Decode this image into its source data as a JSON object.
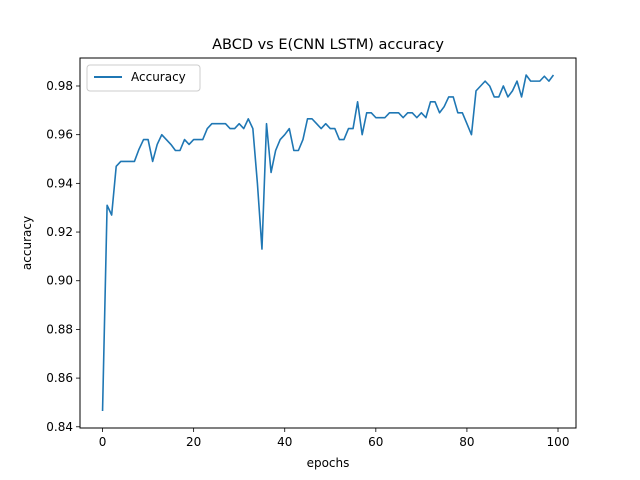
{
  "chart_data": {
    "type": "line",
    "title": "ABCD vs E(CNN LSTM) accuracy",
    "xlabel": "epochs",
    "ylabel": "accuracy",
    "xlim": [
      -4.95,
      103.95
    ],
    "ylim": [
      0.8395,
      0.9915
    ],
    "xticks": [
      0,
      20,
      40,
      60,
      80,
      100
    ],
    "yticks": [
      0.84,
      0.86,
      0.88,
      0.9,
      0.92,
      0.94,
      0.96,
      0.98
    ],
    "ytick_labels": [
      "0.84",
      "0.86",
      "0.88",
      "0.90",
      "0.92",
      "0.94",
      "0.96",
      "0.98"
    ],
    "grid": false,
    "legend_position": "top-left",
    "series": [
      {
        "name": "Accuracy",
        "color": "#1f77b4",
        "x": [
          0,
          1,
          2,
          3,
          4,
          5,
          6,
          7,
          8,
          9,
          10,
          11,
          12,
          13,
          14,
          15,
          16,
          17,
          18,
          19,
          20,
          21,
          22,
          23,
          24,
          25,
          26,
          27,
          28,
          29,
          30,
          31,
          32,
          33,
          34,
          35,
          36,
          37,
          38,
          39,
          40,
          41,
          42,
          43,
          44,
          45,
          46,
          47,
          48,
          49,
          50,
          51,
          52,
          53,
          54,
          55,
          56,
          57,
          58,
          59,
          60,
          61,
          62,
          63,
          64,
          65,
          66,
          67,
          68,
          69,
          70,
          71,
          72,
          73,
          74,
          75,
          76,
          77,
          78,
          79,
          80,
          81,
          82,
          83,
          84,
          85,
          86,
          87,
          88,
          89,
          90,
          91,
          92,
          93,
          94,
          95,
          96,
          97,
          98,
          99
        ],
        "values": [
          0.8465,
          0.931,
          0.927,
          0.947,
          0.949,
          0.949,
          0.949,
          0.949,
          0.954,
          0.958,
          0.958,
          0.949,
          0.956,
          0.96,
          0.958,
          0.956,
          0.9535,
          0.9535,
          0.958,
          0.956,
          0.958,
          0.958,
          0.958,
          0.9625,
          0.9645,
          0.9645,
          0.9645,
          0.9645,
          0.9625,
          0.9625,
          0.9645,
          0.9625,
          0.9665,
          0.9625,
          0.94,
          0.913,
          0.9645,
          0.9445,
          0.9535,
          0.958,
          0.96,
          0.9625,
          0.9535,
          0.9535,
          0.958,
          0.9665,
          0.9665,
          0.9645,
          0.9625,
          0.9645,
          0.9625,
          0.9625,
          0.958,
          0.958,
          0.9625,
          0.9625,
          0.9735,
          0.96,
          0.969,
          0.969,
          0.967,
          0.967,
          0.967,
          0.969,
          0.969,
          0.969,
          0.967,
          0.969,
          0.969,
          0.967,
          0.969,
          0.967,
          0.9735,
          0.9735,
          0.969,
          0.9715,
          0.9755,
          0.9755,
          0.969,
          0.969,
          0.9645,
          0.96,
          0.978,
          0.98,
          0.982,
          0.98,
          0.9755,
          0.9755,
          0.98,
          0.9755,
          0.978,
          0.982,
          0.9755,
          0.9845,
          0.982,
          0.982,
          0.982,
          0.984,
          0.982,
          0.9845
        ]
      }
    ]
  }
}
